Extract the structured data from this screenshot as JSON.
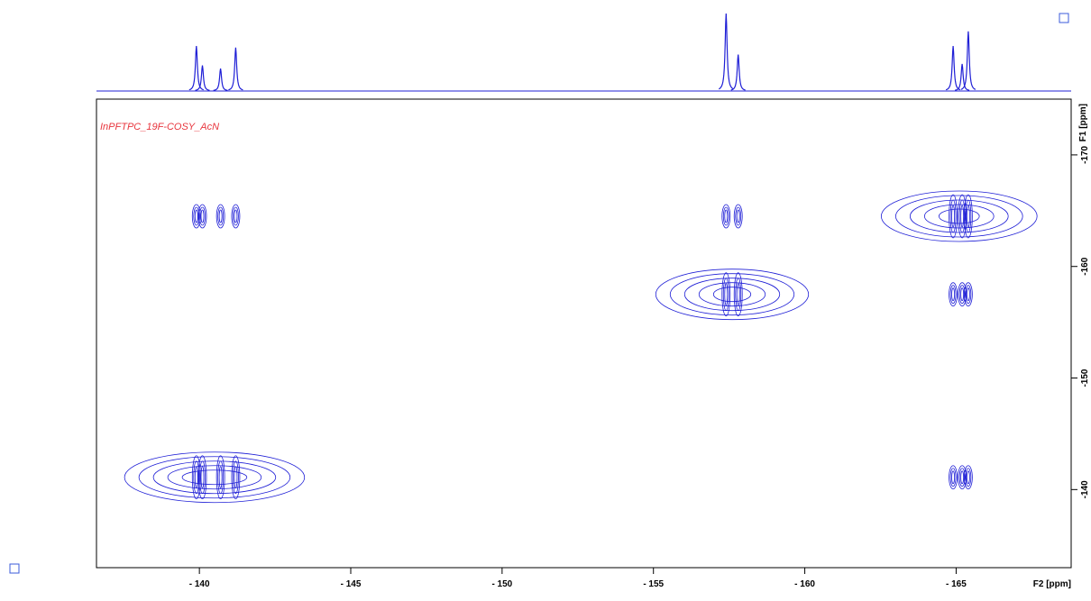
{
  "chart_data": {
    "type": "contour",
    "title": "InPFTPC_19F-COSY_AcN",
    "x_label": "F2 [ppm]",
    "y_label": "F1 [ppm]",
    "xlim": [
      -136.6,
      -168.8
    ],
    "ylim": [
      -133,
      -175
    ],
    "xticks": [
      {
        "value": -140,
        "label": "- 140"
      },
      {
        "value": -145,
        "label": "- 145"
      },
      {
        "value": -150,
        "label": "- 150"
      },
      {
        "value": -155,
        "label": "- 155"
      },
      {
        "value": -160,
        "label": "- 160"
      },
      {
        "value": -165,
        "label": "- 165"
      }
    ],
    "yticks": [
      -170,
      -160,
      -150,
      -140
    ],
    "color": "#1f1fd6",
    "x": [
      -140.5,
      -140.5,
      -157.6,
      -157.6,
      -165.1,
      -165.1,
      -165.1
    ],
    "values": [
      -141.1,
      -164.5,
      -164.5,
      -157.5,
      -164.5,
      -157.5,
      -141.1
    ],
    "projection": {
      "positions": [
        -139.9,
        -140.1,
        -140.7,
        -141.2,
        -157.4,
        -157.8,
        -164.9,
        -165.2,
        -165.4
      ],
      "heights": [
        58,
        33,
        29,
        56,
        100,
        47,
        58,
        35,
        77
      ]
    }
  }
}
